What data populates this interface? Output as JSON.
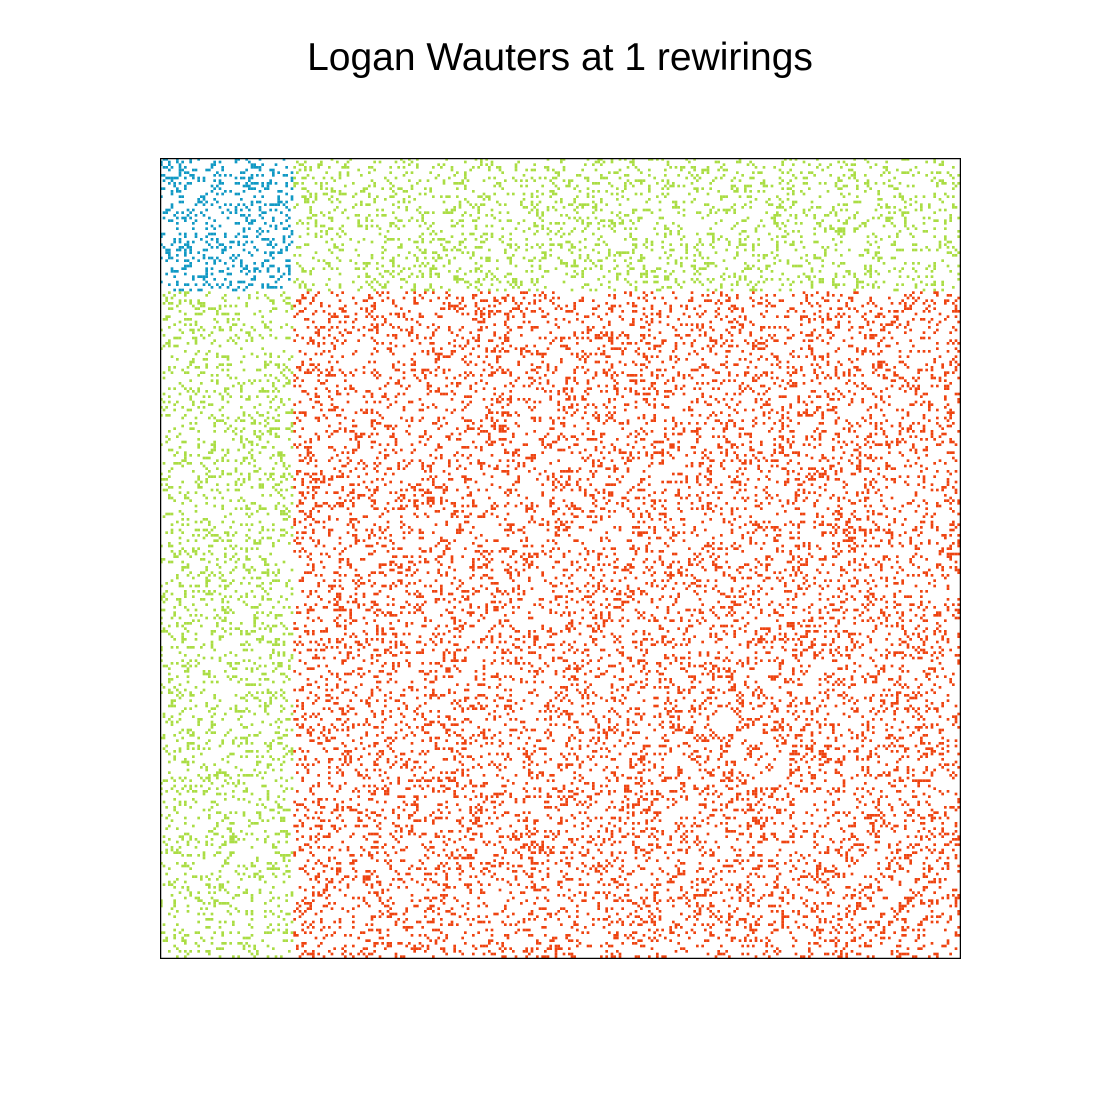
{
  "chart_data": {
    "type": "heatmap",
    "title": "Logan Wauters at 1 rewirings",
    "xlabel": "",
    "ylabel": "",
    "grid": false,
    "axes_ticks": false,
    "matrix_size": 300,
    "blocks": [
      {
        "name": "",
        "start": 0,
        "end": 50,
        "color": "#1199c4"
      },
      {
        "name": "",
        "start": 50,
        "end": 300,
        "color": "#ee4411"
      }
    ],
    "between_block_color": "#aadd44",
    "approx_density": {
      "within_first_block": 0.22,
      "between_blocks": 0.16,
      "within_second_block": 0.17
    }
  }
}
